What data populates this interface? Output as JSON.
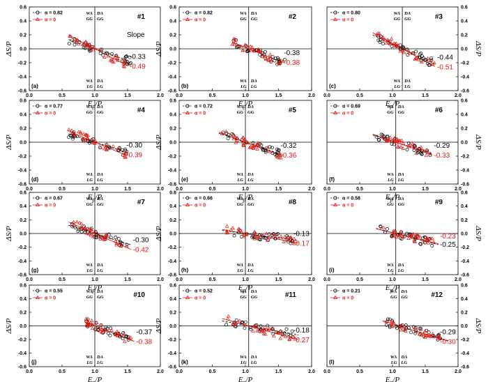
{
  "chart_data": {
    "type": "scatter",
    "colors": {
      "alpha_series": "#000000",
      "zero_series": "#e8130d"
    },
    "common": {
      "xlim": [
        0,
        2
      ],
      "ylim": [
        -0.6,
        0.6
      ],
      "xticks": [
        "0.0",
        "0.5",
        "1.0",
        "1.5",
        "2.0"
      ],
      "yticks": [
        "0.6",
        "0.4",
        "0.2",
        "0.0",
        "-0.2",
        "-0.4",
        "-0.6"
      ],
      "xlabel": "Ep/P",
      "xlabel_main": "E",
      "xlabel_sub": "p",
      "xlabel_tail": "/P",
      "ylabel": "ΔS/P",
      "quadrants": {
        "tl": "WA",
        "tr": "DA",
        "tl2": "GG",
        "tr2": "GG",
        "bl": "WA",
        "br": "DA",
        "bl2": "LG",
        "br2": "LG"
      },
      "legend_zero": "α = 0",
      "slope_word": "Slope"
    },
    "panels": [
      {
        "number": "#1",
        "letter": "(a)",
        "alpha_label": "α = 0.82",
        "slope_alpha": "-0.33",
        "slope_zero": "-0.49",
        "vline": 1.0,
        "xrange": [
          0.6,
          1.55
        ],
        "range_fit": [
          0.6,
          1.5
        ]
      },
      {
        "number": "#2",
        "letter": "(b)",
        "alpha_label": "α = 0.82",
        "slope_alpha": "-0.38",
        "slope_zero": "-0.38",
        "vline": 1.05,
        "xrange": [
          0.8,
          1.6
        ],
        "range_fit": [
          0.8,
          1.55
        ]
      },
      {
        "number": "#3",
        "letter": "(c)",
        "alpha_label": "α = 0.80",
        "slope_alpha": "-0.44",
        "slope_zero": "-0.51",
        "vline": 1.15,
        "xrange": [
          0.75,
          1.65
        ],
        "range_fit": [
          0.7,
          1.65
        ]
      },
      {
        "number": "#4",
        "letter": "(d)",
        "alpha_label": "α = 0.77",
        "slope_alpha": "-0.30",
        "slope_zero": "-0.39",
        "vline": 1.0,
        "xrange": [
          0.6,
          1.5
        ],
        "range_fit": [
          0.6,
          1.45
        ]
      },
      {
        "number": "#5",
        "letter": "(e)",
        "alpha_label": "α = 0.72",
        "slope_alpha": "-0.32",
        "slope_zero": "-0.36",
        "vline": 1.0,
        "xrange": [
          0.65,
          1.55
        ],
        "range_fit": [
          0.6,
          1.5
        ]
      },
      {
        "number": "#6",
        "letter": "(f)",
        "alpha_label": "α = 0.69",
        "slope_alpha": "-0.29",
        "slope_zero": "-0.33",
        "vline": 1.05,
        "xrange": [
          0.75,
          1.6
        ],
        "range_fit": [
          0.7,
          1.6
        ]
      },
      {
        "number": "#7",
        "letter": "(g)",
        "alpha_label": "α = 0.67",
        "slope_alpha": "-0.30",
        "slope_zero": "-0.42",
        "vline": 1.0,
        "xrange": [
          0.65,
          1.5
        ],
        "range_fit": [
          0.6,
          1.55
        ]
      },
      {
        "number": "#8",
        "letter": "(h)",
        "alpha_label": "α = 0.66",
        "slope_alpha": "-0.13",
        "slope_zero": "-0.17",
        "vline": 1.0,
        "xrange": [
          0.7,
          1.75
        ],
        "range_fit": [
          0.65,
          1.8
        ]
      },
      {
        "number": "#9",
        "letter": "(i)",
        "alpha_label": "α = 0.58",
        "slope_alpha": "-0.25",
        "slope_zero": "-0.23",
        "vline": 1.05,
        "xrange": [
          0.8,
          1.65
        ],
        "range_fit": [
          0.75,
          1.7
        ]
      },
      {
        "number": "#10",
        "letter": "(j)",
        "alpha_label": "α = 0.55",
        "slope_alpha": "-0.37",
        "slope_zero": "-0.38",
        "vline": 1.0,
        "xrange": [
          0.85,
          1.55
        ],
        "range_fit": [
          0.85,
          1.6
        ]
      },
      {
        "number": "#11",
        "letter": "(k)",
        "alpha_label": "α = 0.52",
        "slope_alpha": "-0.18",
        "slope_zero": "-0.27",
        "vline": 1.05,
        "xrange": [
          0.7,
          1.75
        ],
        "range_fit": [
          0.65,
          1.8
        ]
      },
      {
        "number": "#12",
        "letter": "(l)",
        "alpha_label": "α = 0.21",
        "slope_alpha": "-0.29",
        "slope_zero": "-0.30",
        "vline": 1.1,
        "xrange": [
          0.9,
          1.75
        ],
        "range_fit": [
          0.85,
          1.85
        ]
      }
    ]
  }
}
